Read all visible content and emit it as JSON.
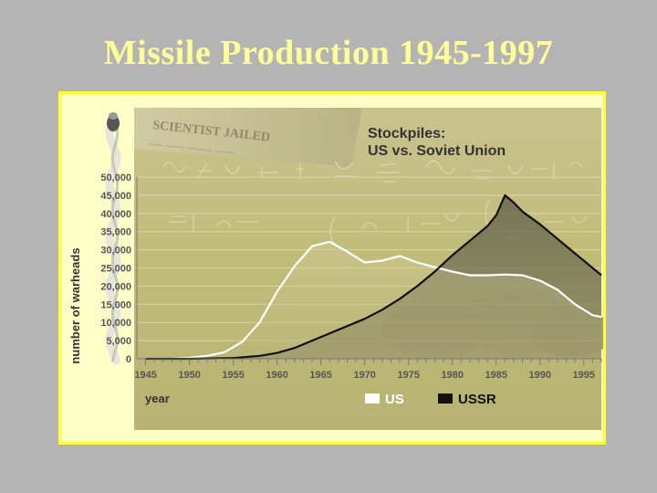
{
  "slide": {
    "title": "Missile Production 1945-1997"
  },
  "chart_data": {
    "type": "line",
    "title": "Stockpiles:",
    "subtitle": "US vs. Soviet Union",
    "xlabel": "year",
    "ylabel": "number of warheads",
    "xlim": [
      1944,
      1997
    ],
    "ylim": [
      0,
      50000
    ],
    "x_ticks": [
      "1945",
      "1950",
      "1955",
      "1960",
      "1965",
      "1970",
      "1975",
      "1980",
      "1985",
      "1990",
      "1995"
    ],
    "y_ticks": [
      "0",
      "5,000",
      "10,000",
      "15,000",
      "20,000",
      "25,000",
      "30,000",
      "35,000",
      "40,000",
      "45,000",
      "50,000"
    ],
    "grid": true,
    "legend_position": "bottom-right",
    "series": [
      {
        "name": "US",
        "color": "#ffffff",
        "x": [
          1945,
          1948,
          1950,
          1952,
          1954,
          1956,
          1958,
          1960,
          1962,
          1964,
          1966,
          1968,
          1970,
          1972,
          1974,
          1976,
          1978,
          1980,
          1982,
          1984,
          1986,
          1988,
          1990,
          1992,
          1994,
          1996,
          1997
        ],
        "values": [
          0,
          50,
          300,
          800,
          1800,
          4600,
          10000,
          18500,
          25500,
          31000,
          32200,
          29500,
          26500,
          27000,
          28300,
          26500,
          25200,
          24000,
          23000,
          23000,
          23200,
          23000,
          21500,
          19000,
          15000,
          12000,
          11500
        ]
      },
      {
        "name": "USSR",
        "color": "#111111",
        "x": [
          1945,
          1950,
          1955,
          1958,
          1960,
          1962,
          1964,
          1966,
          1968,
          1970,
          1972,
          1974,
          1976,
          1978,
          1980,
          1982,
          1984,
          1985,
          1986,
          1987,
          1988,
          1990,
          1992,
          1994,
          1996,
          1997
        ],
        "values": [
          0,
          0,
          200,
          800,
          1600,
          3000,
          5000,
          7000,
          9000,
          11000,
          13500,
          16500,
          20000,
          24000,
          28500,
          32500,
          36500,
          39500,
          45000,
          43000,
          40500,
          37000,
          33000,
          29000,
          25000,
          23000
        ]
      }
    ]
  }
}
